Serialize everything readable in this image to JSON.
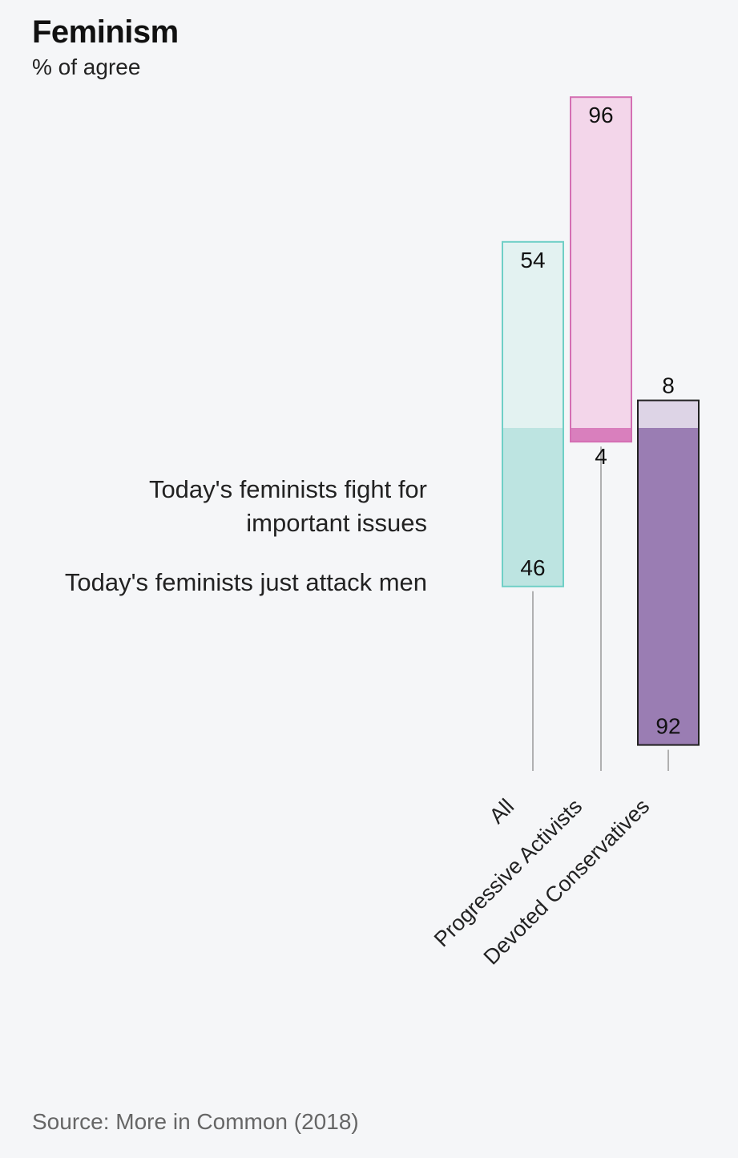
{
  "title": "Feminism",
  "subtitle": "% of agree",
  "legend": {
    "top_label": "Today's feminists fight for important issues",
    "bottom_label": "Today's feminists just attack men"
  },
  "source": "Source: More in Common (2018)",
  "chart_data": {
    "type": "bar",
    "title": "Feminism",
    "subtitle": "% of agree",
    "categories": [
      "All",
      "Progressive Activists",
      "Devoted Conservatives"
    ],
    "series": [
      {
        "name": "Today's feminists fight for important issues",
        "values": [
          54,
          96,
          8
        ]
      },
      {
        "name": "Today's feminists just attack men",
        "values": [
          46,
          4,
          92
        ]
      }
    ],
    "colors": [
      {
        "light": "#e3f2f1",
        "dark": "#bde4e1",
        "stroke": "#6fcfc6"
      },
      {
        "light": "#f3d6ea",
        "dark": "#d97fbd",
        "stroke": "#d46fb3"
      },
      {
        "light": "#ddd4e6",
        "dark": "#9a7db3",
        "stroke": "#222222"
      }
    ],
    "ylim": [
      0,
      100
    ]
  }
}
